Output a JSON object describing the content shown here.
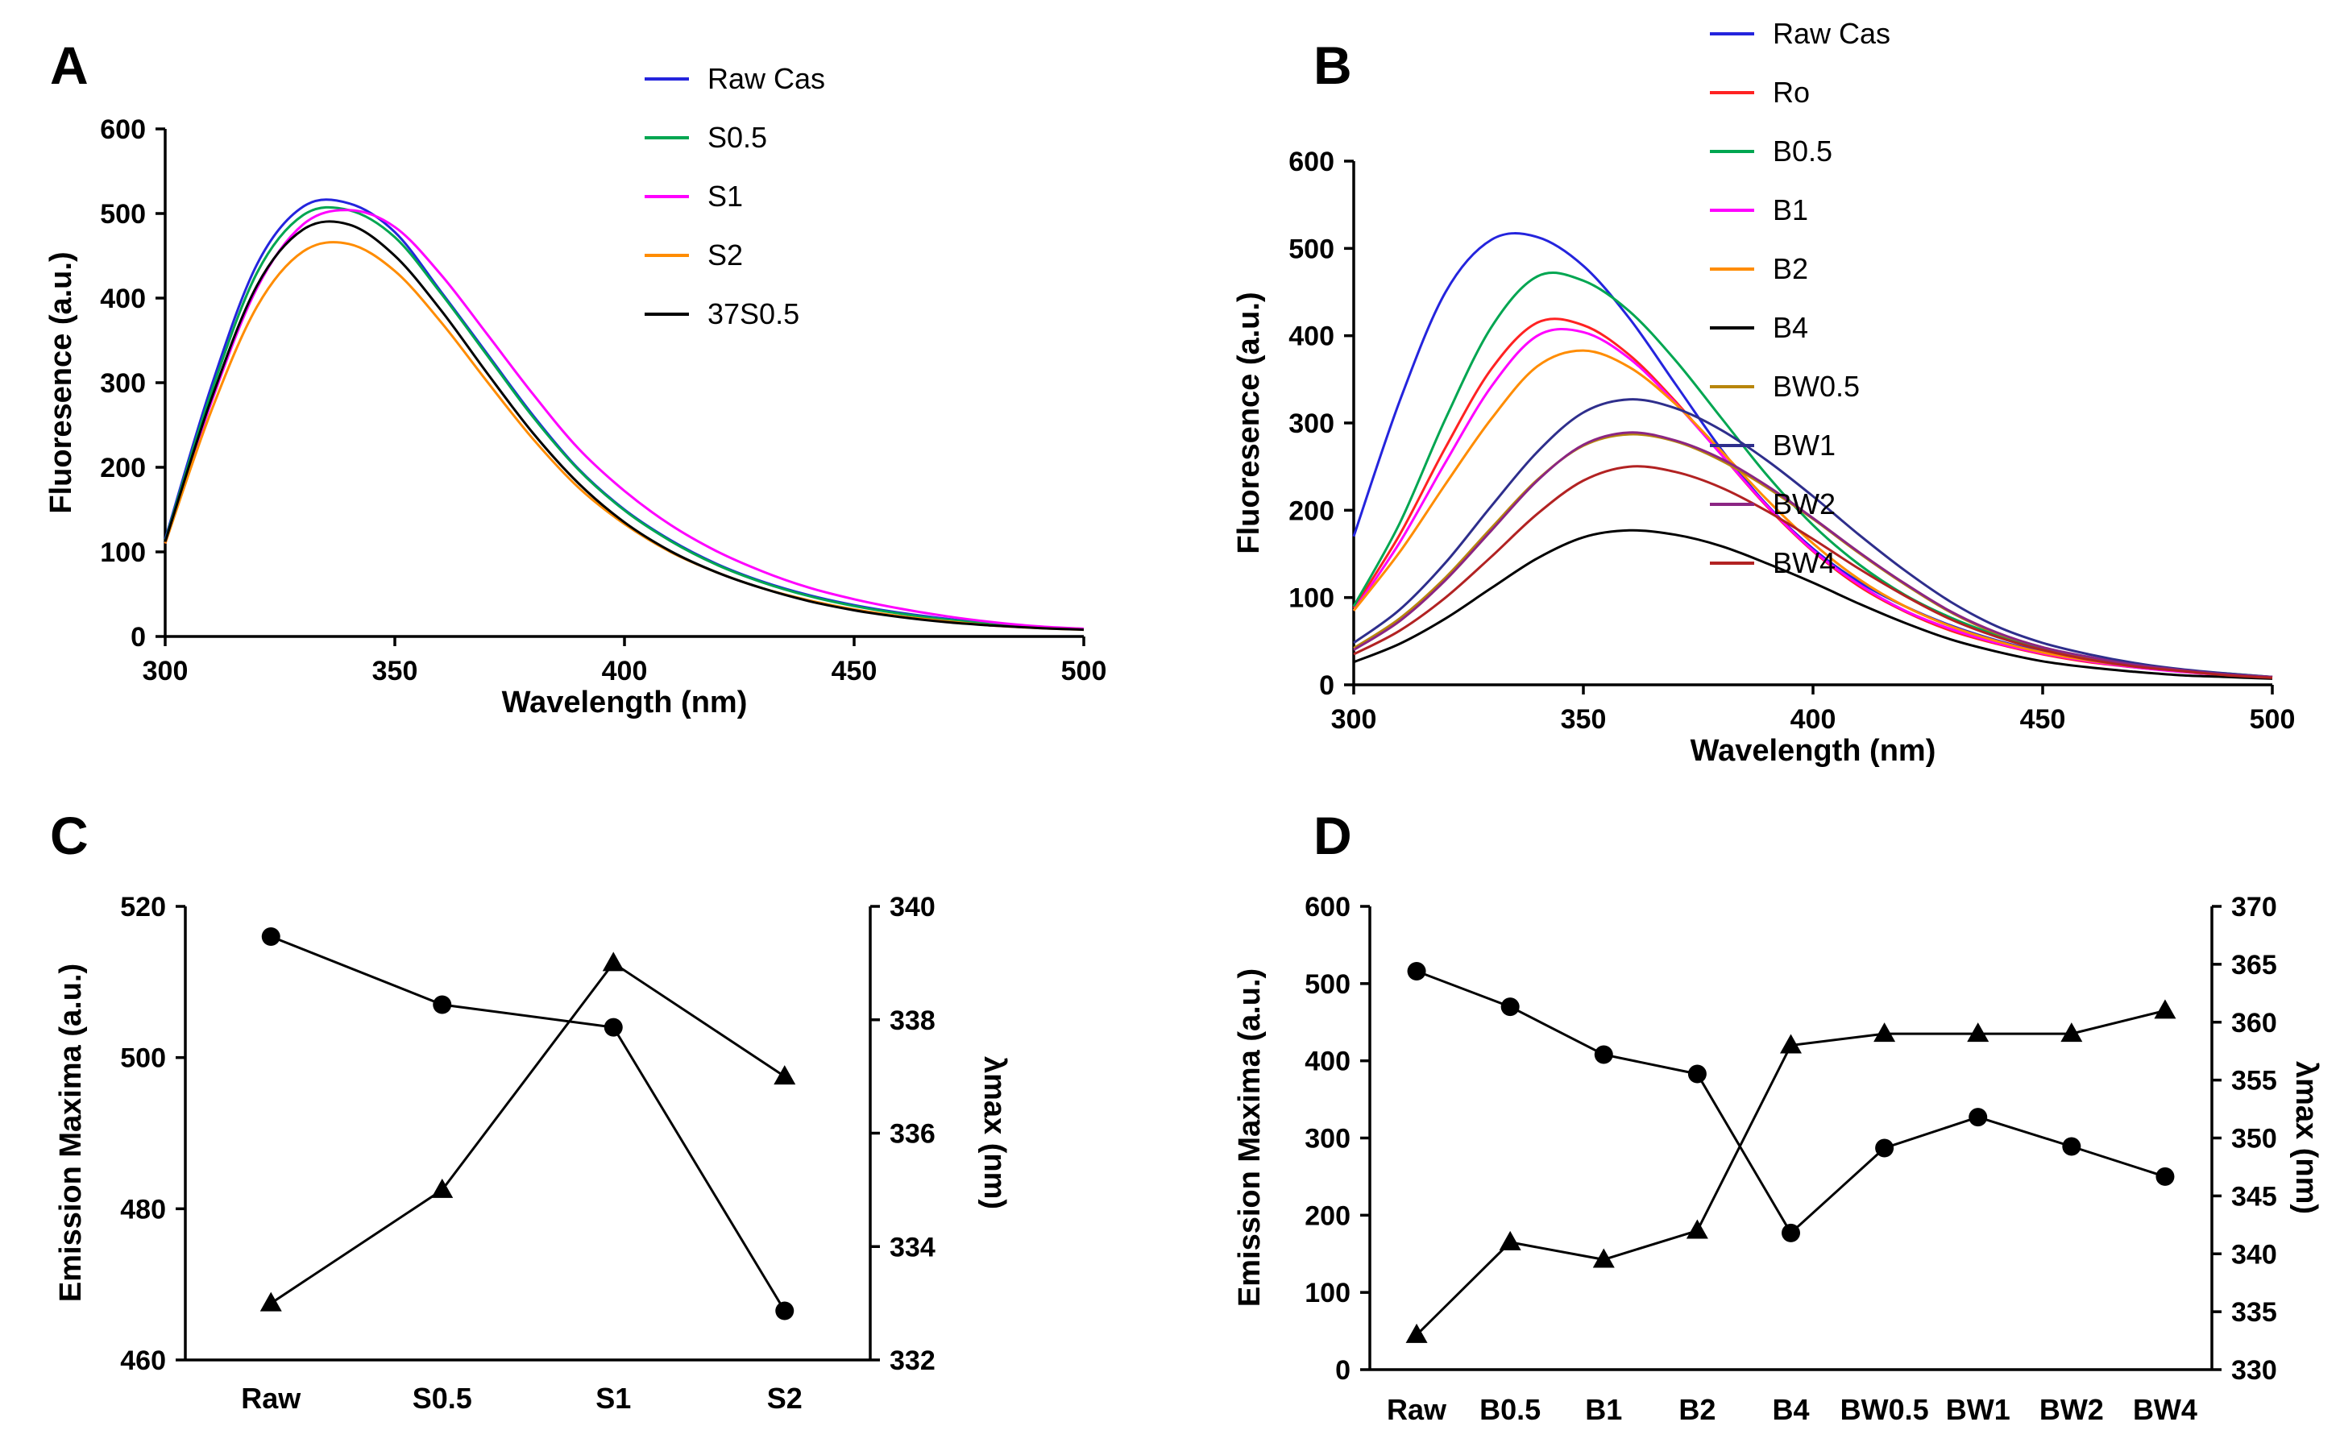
{
  "figure": {
    "background": "#ffffff",
    "panels": [
      {
        "label": "A"
      },
      {
        "label": "B"
      },
      {
        "label": "C"
      },
      {
        "label": "D"
      }
    ]
  },
  "chart_data": [
    {
      "panel": "A",
      "type": "line",
      "title": "",
      "xlabel": "Wavelength (nm)",
      "ylabel": "Fluoresence (a.u.)",
      "xlim": [
        300,
        500
      ],
      "ylim": [
        0,
        600
      ],
      "xticks": [
        300,
        350,
        400,
        450,
        500
      ],
      "yticks": [
        0,
        100,
        200,
        300,
        400,
        500,
        600
      ],
      "grid": false,
      "legend_position": "top-right",
      "wavelengths_nm": {
        "start": 300,
        "end": 500,
        "step": 10
      },
      "series": [
        {
          "name": "Raw Cas",
          "color": "#2424dd",
          "values": [
            115,
            295,
            440,
            508,
            512,
            478,
            408,
            335,
            262,
            198,
            150,
            114,
            86,
            65,
            49,
            37,
            28,
            21,
            15,
            11,
            9
          ]
        },
        {
          "name": "S0.5",
          "color": "#00a651",
          "values": [
            113,
            288,
            430,
            498,
            504,
            472,
            406,
            333,
            260,
            197,
            149,
            113,
            85,
            64,
            48,
            36,
            27,
            20,
            15,
            11,
            9
          ]
        },
        {
          "name": "S1",
          "color": "#ff00ff",
          "values": [
            110,
            276,
            412,
            487,
            504,
            484,
            428,
            358,
            287,
            222,
            172,
            132,
            101,
            77,
            58,
            44,
            33,
            24,
            17,
            12,
            9
          ]
        },
        {
          "name": "S2",
          "color": "#ff8c00",
          "values": [
            110,
            266,
            390,
            455,
            464,
            432,
            372,
            302,
            234,
            176,
            133,
            100,
            76,
            57,
            43,
            32,
            24,
            18,
            13,
            10,
            8
          ]
        },
        {
          "name": "37S0.5",
          "color": "#000000",
          "values": [
            112,
            280,
            415,
            481,
            487,
            450,
            386,
            312,
            241,
            181,
            135,
            101,
            76,
            57,
            42,
            31,
            23,
            17,
            13,
            10,
            8
          ]
        }
      ]
    },
    {
      "panel": "B",
      "type": "line",
      "title": "",
      "xlabel": "Wavelength (nm)",
      "ylabel": "Fluoresence (a.u.)",
      "xlim": [
        300,
        500
      ],
      "ylim": [
        0,
        600
      ],
      "xticks": [
        300,
        350,
        400,
        450,
        500
      ],
      "yticks": [
        0,
        100,
        200,
        300,
        400,
        500,
        600
      ],
      "grid": false,
      "legend_position": "top-right",
      "wavelengths_nm": {
        "start": 300,
        "end": 500,
        "step": 10
      },
      "series": [
        {
          "name": "Raw Cas",
          "color": "#2424dd",
          "values": [
            170,
            325,
            450,
            510,
            513,
            480,
            420,
            345,
            270,
            206,
            156,
            118,
            90,
            68,
            51,
            38,
            29,
            21,
            16,
            12,
            9
          ]
        },
        {
          "name": "Ro",
          "color": "#ff2222",
          "values": [
            88,
            172,
            272,
            362,
            415,
            412,
            378,
            325,
            264,
            204,
            153,
            113,
            84,
            62,
            47,
            35,
            26,
            20,
            15,
            11,
            9
          ]
        },
        {
          "name": "B0.5",
          "color": "#00a651",
          "values": [
            90,
            185,
            305,
            410,
            468,
            463,
            428,
            372,
            306,
            240,
            183,
            138,
            103,
            77,
            57,
            42,
            31,
            23,
            17,
            13,
            9
          ]
        },
        {
          "name": "B1",
          "color": "#ff00ff",
          "values": [
            85,
            163,
            255,
            342,
            400,
            404,
            374,
            323,
            264,
            205,
            154,
            115,
            85,
            64,
            48,
            36,
            27,
            20,
            15,
            11,
            8
          ]
        },
        {
          "name": "B2",
          "color": "#ff8c00",
          "values": [
            85,
            152,
            230,
            305,
            365,
            383,
            364,
            322,
            268,
            212,
            162,
            121,
            90,
            67,
            50,
            37,
            28,
            21,
            16,
            11,
            8
          ]
        },
        {
          "name": "B4",
          "color": "#000000",
          "values": [
            26,
            47,
            76,
            111,
            145,
            169,
            177,
            172,
            159,
            139,
            117,
            93,
            71,
            52,
            38,
            27,
            20,
            15,
            11,
            9,
            7
          ]
        },
        {
          "name": "BW0.5",
          "color": "#b8860b",
          "values": [
            42,
            76,
            123,
            180,
            235,
            274,
            287,
            279,
            257,
            226,
            190,
            151,
            115,
            83,
            59,
            43,
            31,
            23,
            17,
            12,
            9
          ]
        },
        {
          "name": "BW1",
          "color": "#2e2e8c",
          "values": [
            48,
            86,
            140,
            205,
            267,
            312,
            327,
            317,
            292,
            257,
            216,
            172,
            131,
            95,
            67,
            48,
            35,
            25,
            18,
            13,
            9
          ]
        },
        {
          "name": "BW2",
          "color": "#8b2583",
          "values": [
            40,
            73,
            120,
            177,
            234,
            275,
            289,
            280,
            259,
            228,
            191,
            152,
            116,
            84,
            60,
            43,
            32,
            23,
            17,
            12,
            9
          ]
        },
        {
          "name": "BW4",
          "color": "#b22222",
          "values": [
            35,
            62,
            100,
            147,
            196,
            234,
            250,
            244,
            226,
            199,
            167,
            133,
            102,
            75,
            55,
            40,
            29,
            21,
            16,
            11,
            8
          ]
        }
      ]
    },
    {
      "panel": "C",
      "type": "line",
      "title": "",
      "categories": [
        "Raw",
        "S0.5",
        "S1",
        "S2"
      ],
      "left_axis": {
        "label": "Emission Maxima (a.u.)",
        "lim": [
          460,
          520
        ],
        "ticks": [
          460,
          480,
          500,
          520
        ]
      },
      "right_axis": {
        "label": "λmax (nm)",
        "lim": [
          332,
          340
        ],
        "ticks": [
          332,
          334,
          336,
          338,
          340
        ]
      },
      "grid": false,
      "series": [
        {
          "name": "Emission Maxima",
          "axis": "left",
          "marker": "circle",
          "color": "#000000",
          "values": [
            516,
            507,
            504,
            466.5
          ]
        },
        {
          "name": "λmax",
          "axis": "right",
          "marker": "triangle",
          "color": "#000000",
          "values": [
            333,
            335,
            339,
            337
          ]
        }
      ]
    },
    {
      "panel": "D",
      "type": "line",
      "title": "",
      "categories": [
        "Raw",
        "B0.5",
        "B1",
        "B2",
        "B4",
        "BW0.5",
        "BW1",
        "BW2",
        "BW4"
      ],
      "left_axis": {
        "label": "Emission Maxima (a.u.)",
        "lim": [
          0,
          600
        ],
        "ticks": [
          0,
          100,
          200,
          300,
          400,
          500,
          600
        ]
      },
      "right_axis": {
        "label": "λmax (nm)",
        "lim": [
          330,
          370
        ],
        "ticks": [
          330,
          335,
          340,
          345,
          350,
          355,
          360,
          365,
          370
        ]
      },
      "grid": false,
      "series": [
        {
          "name": "Emission Maxima",
          "axis": "left",
          "marker": "circle",
          "color": "#000000",
          "values": [
            516,
            470,
            408,
            383,
            177,
            287,
            327,
            289,
            250
          ]
        },
        {
          "name": "λmax",
          "axis": "right",
          "marker": "triangle",
          "color": "#000000",
          "values": [
            333,
            341,
            339.5,
            342,
            358,
            359,
            359,
            359,
            361
          ]
        }
      ]
    }
  ]
}
